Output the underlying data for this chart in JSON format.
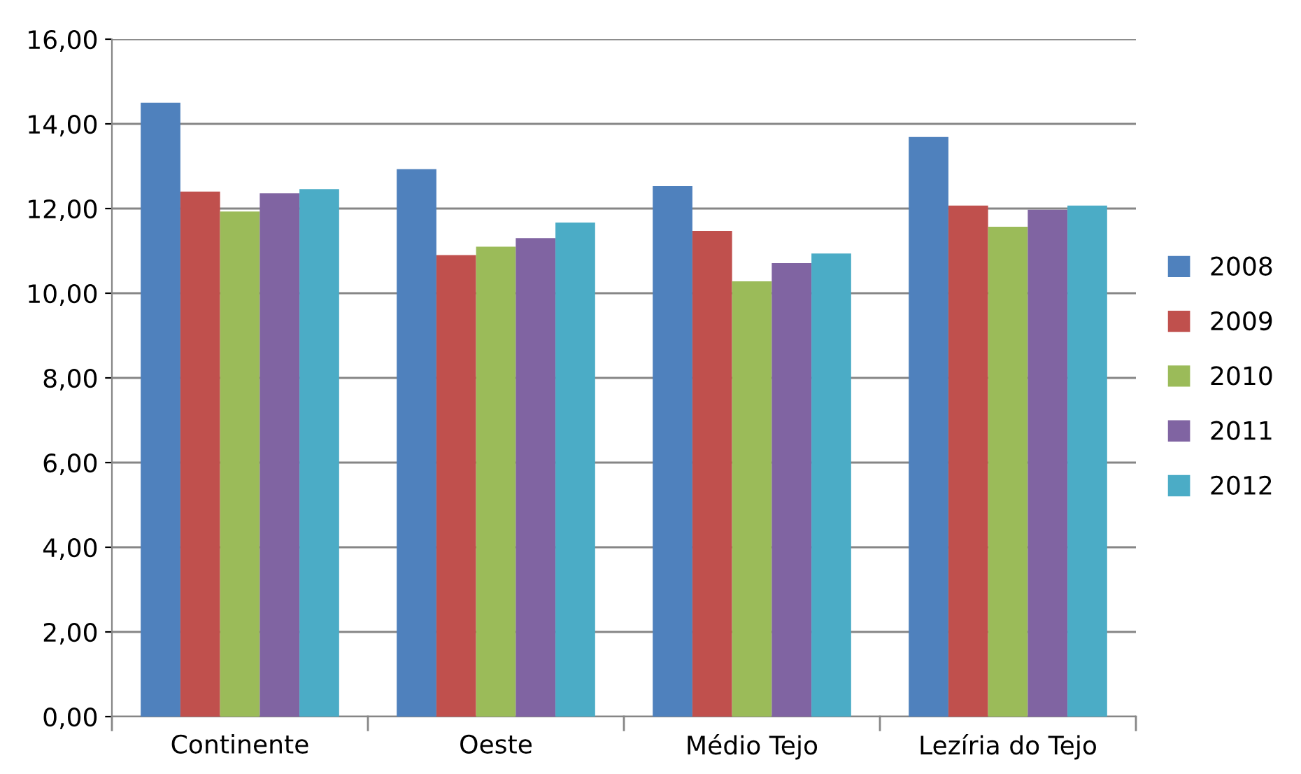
{
  "chart_data": {
    "type": "bar",
    "categories": [
      "Continente",
      "Oeste",
      "Médio Tejo",
      "Lezíria do Tejo"
    ],
    "series": [
      {
        "name": "2008",
        "color": "#4f81bd",
        "values": [
          14.5,
          12.93,
          12.53,
          13.69
        ]
      },
      {
        "name": "2009",
        "color": "#c0504d",
        "values": [
          12.4,
          10.9,
          11.47,
          12.07
        ]
      },
      {
        "name": "2010",
        "color": "#9bbb59",
        "values": [
          11.93,
          11.1,
          10.28,
          11.57
        ]
      },
      {
        "name": "2011",
        "color": "#8064a2",
        "values": [
          12.36,
          11.3,
          10.71,
          11.97
        ]
      },
      {
        "name": "2012",
        "color": "#4bacc6",
        "values": [
          12.46,
          11.67,
          10.94,
          12.07
        ]
      }
    ],
    "ylim": [
      0,
      16
    ],
    "yticks": [
      {
        "value": 0,
        "label": "0,00"
      },
      {
        "value": 2,
        "label": "2,00"
      },
      {
        "value": 4,
        "label": "4,00"
      },
      {
        "value": 6,
        "label": "6,00"
      },
      {
        "value": 8,
        "label": "8,00"
      },
      {
        "value": 10,
        "label": "10,00"
      },
      {
        "value": 12,
        "label": "12,00"
      },
      {
        "value": 14,
        "label": "14,00"
      },
      {
        "value": 16,
        "label": "16,00"
      }
    ],
    "grid": "y",
    "legend": "right"
  }
}
